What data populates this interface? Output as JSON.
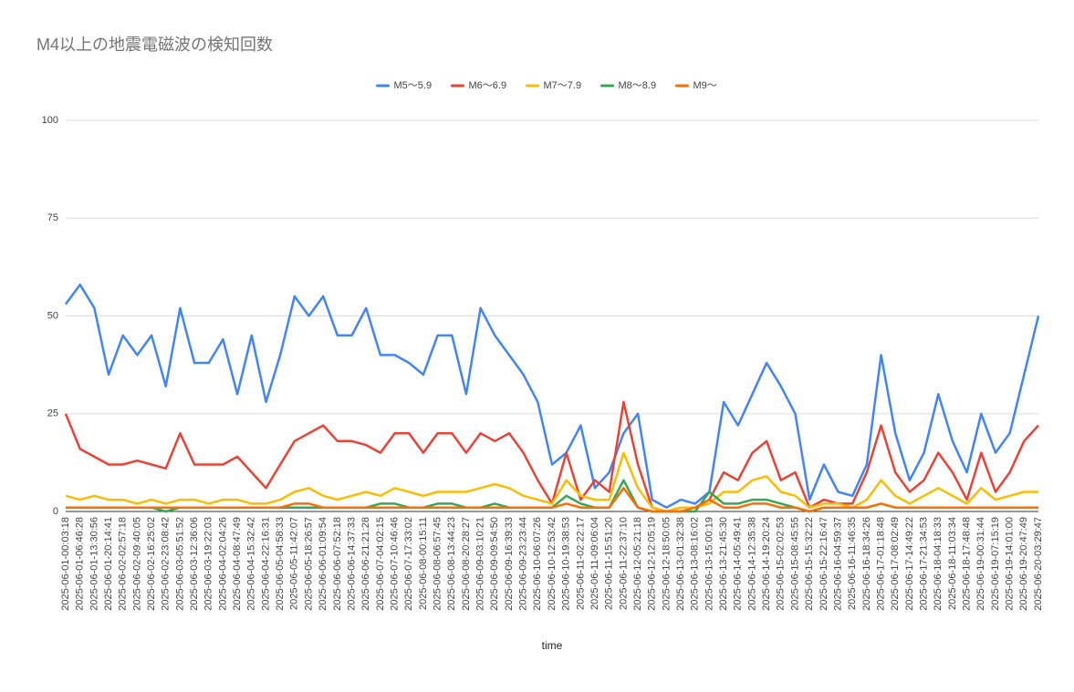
{
  "chart_data": {
    "type": "line",
    "title": "M4以上の地震電磁波の検知回数",
    "x_label": "time",
    "categories": [
      "2025-06-01-00:03:18",
      "2025-06-01-06:46:28",
      "2025-06-01-13:30:56",
      "2025-06-01-20:14:41",
      "2025-06-02-02:57:18",
      "2025-06-02-09:40:05",
      "2025-06-02-16:25:02",
      "2025-06-02-23:08:42",
      "2025-06-03-05:51:52",
      "2025-06-03-12:36:06",
      "2025-06-03-19:22:03",
      "2025-06-04-02:04:26",
      "2025-06-04-08:47:49",
      "2025-06-04-15:32:42",
      "2025-06-04-22:16:31",
      "2025-06-05-04:58:33",
      "2025-06-05-11:42:07",
      "2025-06-05-18:26:57",
      "2025-06-06-01:09:54",
      "2025-06-06-07:52:18",
      "2025-06-06-14:37:33",
      "2025-06-06-21:21:28",
      "2025-06-07-04:02:15",
      "2025-06-07-10:46:46",
      "2025-06-07-17:33:02",
      "2025-06-08-00:15:11",
      "2025-06-08-06:57:45",
      "2025-06-08-13:44:23",
      "2025-06-08-20:28:27",
      "2025-06-09-03:10:21",
      "2025-06-09-09:54:50",
      "2025-06-09-16:39:33",
      "2025-06-09-23:23:44",
      "2025-06-10-06:07:26",
      "2025-06-10-12:53:42",
      "2025-06-10-19:38:53",
      "2025-06-11-02:22:17",
      "2025-06-11-09:06:04",
      "2025-06-11-15:51:20",
      "2025-06-11-22:37:10",
      "2025-06-12-05:21:18",
      "2025-06-12-12:05:19",
      "2025-06-12-18:50:05",
      "2025-06-13-01:32:38",
      "2025-06-13-08:16:02",
      "2025-06-13-15:00:19",
      "2025-06-13-21:45:30",
      "2025-06-14-05:49:41",
      "2025-06-14-12:35:38",
      "2025-06-14-19:20:24",
      "2025-06-15-02:02:53",
      "2025-06-15-08:45:55",
      "2025-06-15-15:32:22",
      "2025-06-15-22:16:47",
      "2025-06-16-04:59:37",
      "2025-06-16-11:46:35",
      "2025-06-16-18:34:26",
      "2025-06-17-01:18:48",
      "2025-06-17-08:02:49",
      "2025-06-17-14:49:22",
      "2025-06-17-21:34:53",
      "2025-06-18-04:18:33",
      "2025-06-18-11:03:34",
      "2025-06-18-17:48:48",
      "2025-06-19-00:31:44",
      "2025-06-19-07:15:19",
      "2025-06-19-14:01:00",
      "2025-06-19-20:47:49",
      "2025-06-20-03:29:47"
    ],
    "series": [
      {
        "name": "M5〜5.9",
        "color": "#4285f4",
        "values": [
          53,
          58,
          52,
          35,
          45,
          40,
          45,
          32,
          52,
          38,
          38,
          44,
          30,
          45,
          28,
          40,
          55,
          50,
          55,
          45,
          45,
          52,
          40,
          40,
          38,
          35,
          45,
          45,
          30,
          52,
          45,
          40,
          35,
          28,
          12,
          15,
          22,
          6,
          10,
          20,
          25,
          3,
          1,
          3,
          2,
          5,
          28,
          22,
          30,
          38,
          32,
          25,
          3,
          12,
          5,
          4,
          12,
          40,
          20,
          8,
          15,
          30,
          18,
          10,
          25,
          15,
          20,
          35,
          50
        ]
      },
      {
        "name": "M6〜6.9",
        "color": "#ea4335",
        "values": [
          25,
          16,
          14,
          12,
          12,
          13,
          12,
          11,
          20,
          12,
          12,
          12,
          14,
          10,
          6,
          12,
          18,
          20,
          22,
          18,
          18,
          17,
          15,
          20,
          20,
          15,
          20,
          20,
          15,
          20,
          18,
          20,
          15,
          8,
          2,
          15,
          3,
          8,
          5,
          28,
          12,
          1,
          0,
          1,
          1,
          3,
          10,
          8,
          15,
          18,
          8,
          10,
          1,
          3,
          2,
          2,
          10,
          22,
          10,
          5,
          8,
          15,
          10,
          3,
          15,
          5,
          10,
          18,
          22
        ]
      },
      {
        "name": "M7〜7.9",
        "color": "#fbbc04",
        "values": [
          4,
          3,
          4,
          3,
          3,
          2,
          3,
          2,
          3,
          3,
          2,
          3,
          3,
          2,
          2,
          3,
          5,
          6,
          4,
          3,
          4,
          5,
          4,
          6,
          5,
          4,
          5,
          5,
          5,
          6,
          7,
          6,
          4,
          3,
          2,
          8,
          4,
          3,
          3,
          15,
          6,
          1,
          0,
          1,
          1,
          2,
          5,
          5,
          8,
          9,
          5,
          4,
          1,
          2,
          2,
          1,
          3,
          8,
          4,
          2,
          4,
          6,
          4,
          2,
          6,
          3,
          4,
          5,
          5
        ]
      },
      {
        "name": "M8〜8.9",
        "color": "#34a853",
        "values": [
          1,
          1,
          1,
          1,
          1,
          1,
          1,
          0,
          1,
          1,
          1,
          1,
          1,
          1,
          1,
          1,
          1,
          1,
          1,
          1,
          1,
          1,
          2,
          2,
          1,
          1,
          2,
          2,
          1,
          1,
          2,
          1,
          1,
          1,
          1,
          4,
          2,
          1,
          1,
          8,
          1,
          0,
          0,
          0,
          0,
          5,
          2,
          2,
          3,
          3,
          2,
          1,
          0,
          1,
          1,
          1,
          1,
          2,
          1,
          1,
          1,
          1,
          1,
          1,
          1,
          1,
          1,
          1,
          1
        ]
      },
      {
        "name": "M9〜",
        "color": "#ff6d01",
        "values": [
          1,
          1,
          1,
          1,
          1,
          1,
          1,
          1,
          1,
          1,
          1,
          1,
          1,
          1,
          1,
          1,
          2,
          2,
          1,
          1,
          1,
          1,
          1,
          1,
          1,
          1,
          1,
          1,
          1,
          1,
          1,
          1,
          1,
          1,
          1,
          2,
          1,
          1,
          1,
          6,
          1,
          0,
          0,
          0,
          1,
          3,
          1,
          1,
          2,
          2,
          1,
          1,
          0,
          1,
          1,
          1,
          1,
          2,
          1,
          1,
          1,
          1,
          1,
          1,
          1,
          1,
          1,
          1,
          1
        ]
      }
    ],
    "ylim": [
      0,
      100
    ],
    "yticks": [
      0,
      25,
      50,
      75,
      100
    ],
    "grid": true,
    "legend": "top"
  }
}
